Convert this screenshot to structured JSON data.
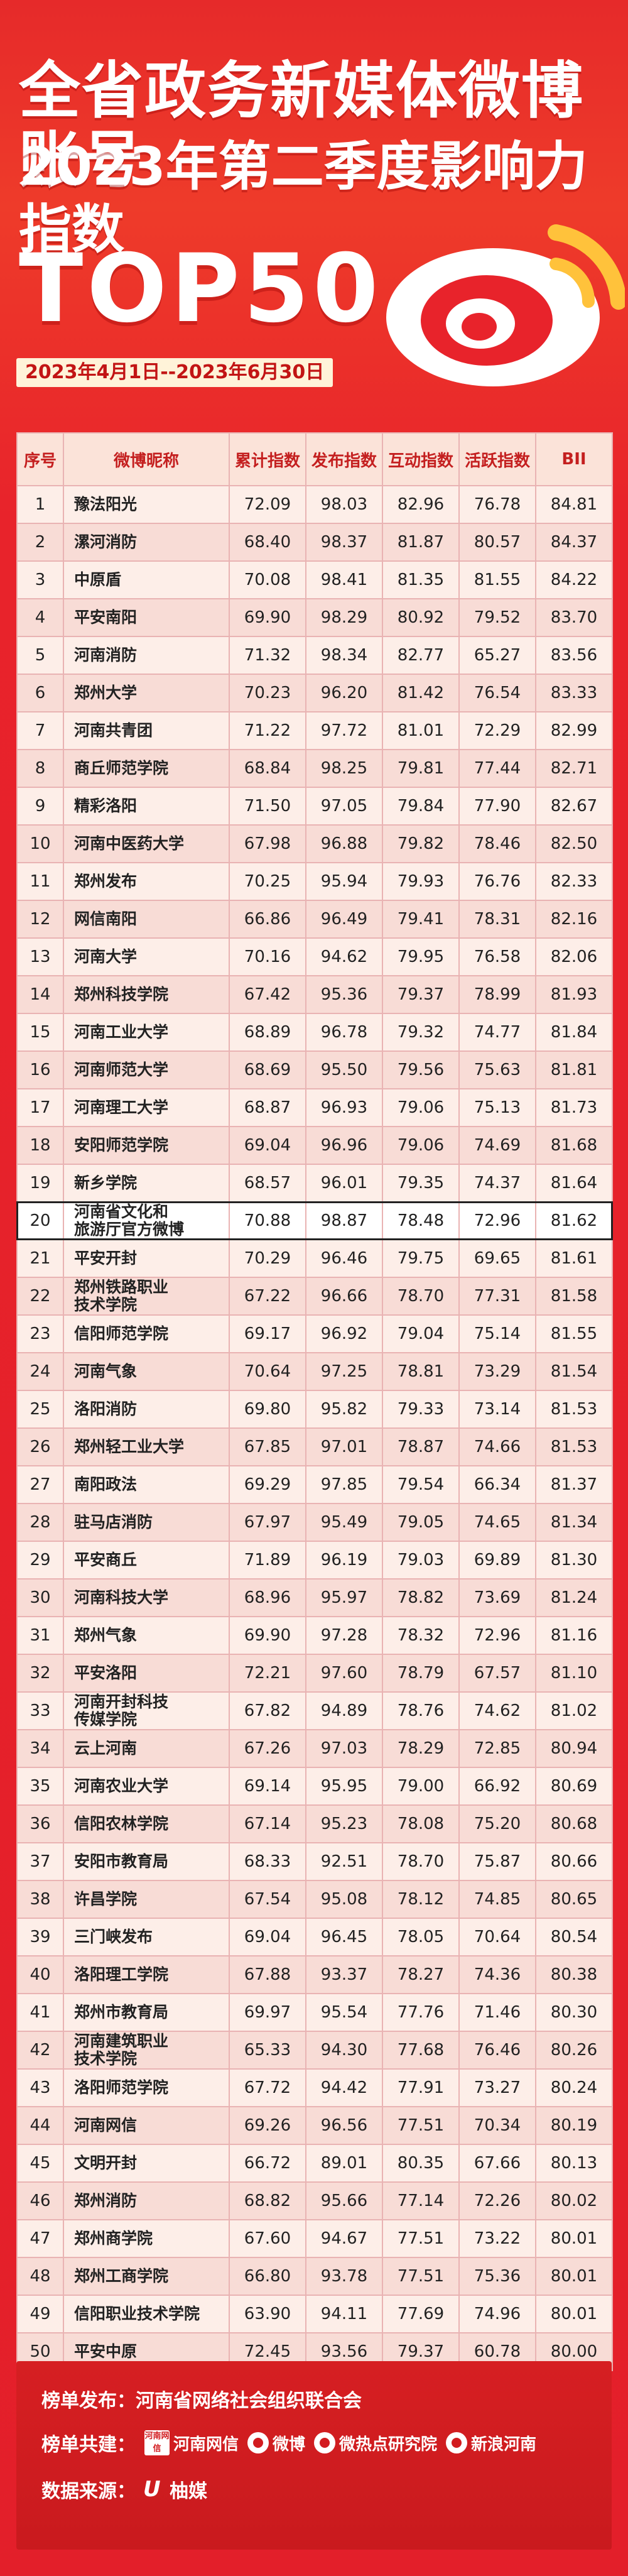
{
  "header": {
    "title_line1": "全省政务新媒体微博账号",
    "title_line2": "2023年第二季度影响力指数",
    "top_label": "TOP50",
    "date_range": "2023年4月1日--2023年6月30日"
  },
  "colors": {
    "brand_red": "#e8232b",
    "accent_yellow": "#ffc23b",
    "header_bg": "#fbe3d9"
  },
  "table": {
    "headers": [
      "序号",
      "微博昵称",
      "累计指数",
      "发布指数",
      "互动指数",
      "活跃指数",
      "BII"
    ],
    "highlighted_rank": "20",
    "rows": [
      [
        "1",
        "豫法阳光",
        "72.09",
        "98.03",
        "82.96",
        "76.78",
        "84.81"
      ],
      [
        "2",
        "漯河消防",
        "68.40",
        "98.37",
        "81.87",
        "80.57",
        "84.37"
      ],
      [
        "3",
        "中原盾",
        "70.08",
        "98.41",
        "81.35",
        "81.55",
        "84.22"
      ],
      [
        "4",
        "平安南阳",
        "69.90",
        "98.29",
        "80.92",
        "79.52",
        "83.70"
      ],
      [
        "5",
        "河南消防",
        "71.32",
        "98.34",
        "82.77",
        "65.27",
        "83.56"
      ],
      [
        "6",
        "郑州大学",
        "70.23",
        "96.20",
        "81.42",
        "76.54",
        "83.33"
      ],
      [
        "7",
        "河南共青团",
        "71.22",
        "97.72",
        "81.01",
        "72.29",
        "82.99"
      ],
      [
        "8",
        "商丘师范学院",
        "68.84",
        "98.25",
        "79.81",
        "77.44",
        "82.71"
      ],
      [
        "9",
        "精彩洛阳",
        "71.50",
        "97.05",
        "79.84",
        "77.90",
        "82.67"
      ],
      [
        "10",
        "河南中医药大学",
        "67.98",
        "96.88",
        "79.82",
        "78.46",
        "82.50"
      ],
      [
        "11",
        "郑州发布",
        "70.25",
        "95.94",
        "79.93",
        "76.76",
        "82.33"
      ],
      [
        "12",
        "网信南阳",
        "66.86",
        "96.49",
        "79.41",
        "78.31",
        "82.16"
      ],
      [
        "13",
        "河南大学",
        "70.16",
        "94.62",
        "79.95",
        "76.58",
        "82.06"
      ],
      [
        "14",
        "郑州科技学院",
        "67.42",
        "95.36",
        "79.37",
        "78.99",
        "81.93"
      ],
      [
        "15",
        "河南工业大学",
        "68.89",
        "96.78",
        "79.32",
        "74.77",
        "81.84"
      ],
      [
        "16",
        "河南师范大学",
        "68.69",
        "95.50",
        "79.56",
        "75.63",
        "81.81"
      ],
      [
        "17",
        "河南理工大学",
        "68.87",
        "96.93",
        "79.06",
        "75.13",
        "81.73"
      ],
      [
        "18",
        "安阳师范学院",
        "69.04",
        "96.96",
        "79.06",
        "74.69",
        "81.68"
      ],
      [
        "19",
        "新乡学院",
        "68.57",
        "96.01",
        "79.35",
        "74.37",
        "81.64"
      ],
      [
        "20",
        "河南省文化和\n旅游厅官方微博",
        "70.88",
        "98.87",
        "78.48",
        "72.96",
        "81.62"
      ],
      [
        "21",
        "平安开封",
        "70.29",
        "96.46",
        "79.75",
        "69.65",
        "81.61"
      ],
      [
        "22",
        "郑州铁路职业\n技术学院",
        "67.22",
        "96.66",
        "78.70",
        "77.31",
        "81.58"
      ],
      [
        "23",
        "信阳师范学院",
        "69.17",
        "96.92",
        "79.04",
        "75.14",
        "81.55"
      ],
      [
        "24",
        "河南气象",
        "70.64",
        "97.25",
        "78.81",
        "73.29",
        "81.54"
      ],
      [
        "25",
        "洛阳消防",
        "69.80",
        "95.82",
        "79.33",
        "73.14",
        "81.53"
      ],
      [
        "26",
        "郑州轻工业大学",
        "67.85",
        "97.01",
        "78.87",
        "74.66",
        "81.53"
      ],
      [
        "27",
        "南阳政法",
        "69.29",
        "97.85",
        "79.54",
        "66.34",
        "81.37"
      ],
      [
        "28",
        "驻马店消防",
        "67.97",
        "95.49",
        "79.05",
        "74.65",
        "81.34"
      ],
      [
        "29",
        "平安商丘",
        "71.89",
        "96.19",
        "79.03",
        "69.89",
        "81.30"
      ],
      [
        "30",
        "河南科技大学",
        "68.96",
        "95.97",
        "78.82",
        "73.69",
        "81.24"
      ],
      [
        "31",
        "郑州气象",
        "69.90",
        "97.28",
        "78.32",
        "72.96",
        "81.16"
      ],
      [
        "32",
        "平安洛阳",
        "72.21",
        "97.60",
        "78.79",
        "67.57",
        "81.10"
      ],
      [
        "33",
        "河南开封科技\n传媒学院",
        "67.82",
        "94.89",
        "78.76",
        "74.62",
        "81.02"
      ],
      [
        "34",
        "云上河南",
        "67.26",
        "97.03",
        "78.29",
        "72.85",
        "80.94"
      ],
      [
        "35",
        "河南农业大学",
        "69.14",
        "95.95",
        "79.00",
        "66.92",
        "80.69"
      ],
      [
        "36",
        "信阳农林学院",
        "67.14",
        "95.23",
        "78.08",
        "75.20",
        "80.68"
      ],
      [
        "37",
        "安阳市教育局",
        "68.33",
        "92.51",
        "78.70",
        "75.87",
        "80.66"
      ],
      [
        "38",
        "许昌学院",
        "67.54",
        "95.08",
        "78.12",
        "74.85",
        "80.65"
      ],
      [
        "39",
        "三门峡发布",
        "69.04",
        "96.45",
        "78.05",
        "70.64",
        "80.54"
      ],
      [
        "40",
        "洛阳理工学院",
        "67.88",
        "93.37",
        "78.27",
        "74.36",
        "80.38"
      ],
      [
        "41",
        "郑州市教育局",
        "69.97",
        "95.54",
        "77.76",
        "71.46",
        "80.30"
      ],
      [
        "42",
        "河南建筑职业\n技术学院",
        "65.33",
        "94.30",
        "77.68",
        "76.46",
        "80.26"
      ],
      [
        "43",
        "洛阳师范学院",
        "67.72",
        "94.42",
        "77.91",
        "73.27",
        "80.24"
      ],
      [
        "44",
        "河南网信",
        "69.26",
        "96.56",
        "77.51",
        "70.34",
        "80.19"
      ],
      [
        "45",
        "文明开封",
        "66.72",
        "89.01",
        "80.35",
        "67.66",
        "80.13"
      ],
      [
        "46",
        "郑州消防",
        "68.82",
        "95.66",
        "77.14",
        "72.26",
        "80.02"
      ],
      [
        "47",
        "郑州商学院",
        "67.60",
        "94.67",
        "77.51",
        "73.22",
        "80.01"
      ],
      [
        "48",
        "郑州工商学院",
        "66.80",
        "93.78",
        "77.51",
        "75.36",
        "80.01"
      ],
      [
        "49",
        "信阳职业技术学院",
        "63.90",
        "94.11",
        "77.69",
        "74.96",
        "80.01"
      ],
      [
        "50",
        "平安中原",
        "72.45",
        "93.56",
        "79.37",
        "60.78",
        "80.00"
      ]
    ]
  },
  "footer": {
    "publisher_label": "榜单发布：河南省网络社会组织联合会",
    "cobuild_label": "榜单共建：",
    "sponsors": [
      {
        "icon": "henan-netinfo-badge-icon",
        "badge_text": "河南网信",
        "name": "河南网信"
      },
      {
        "icon": "weibo-logo-icon",
        "name": "微博"
      },
      {
        "icon": "hotspot-institute-logo-icon",
        "name": "微热点研究院"
      },
      {
        "icon": "sina-logo-icon",
        "name": "新浪河南"
      }
    ],
    "data_source_label": "数据来源：",
    "data_source_name": "柚媒"
  }
}
